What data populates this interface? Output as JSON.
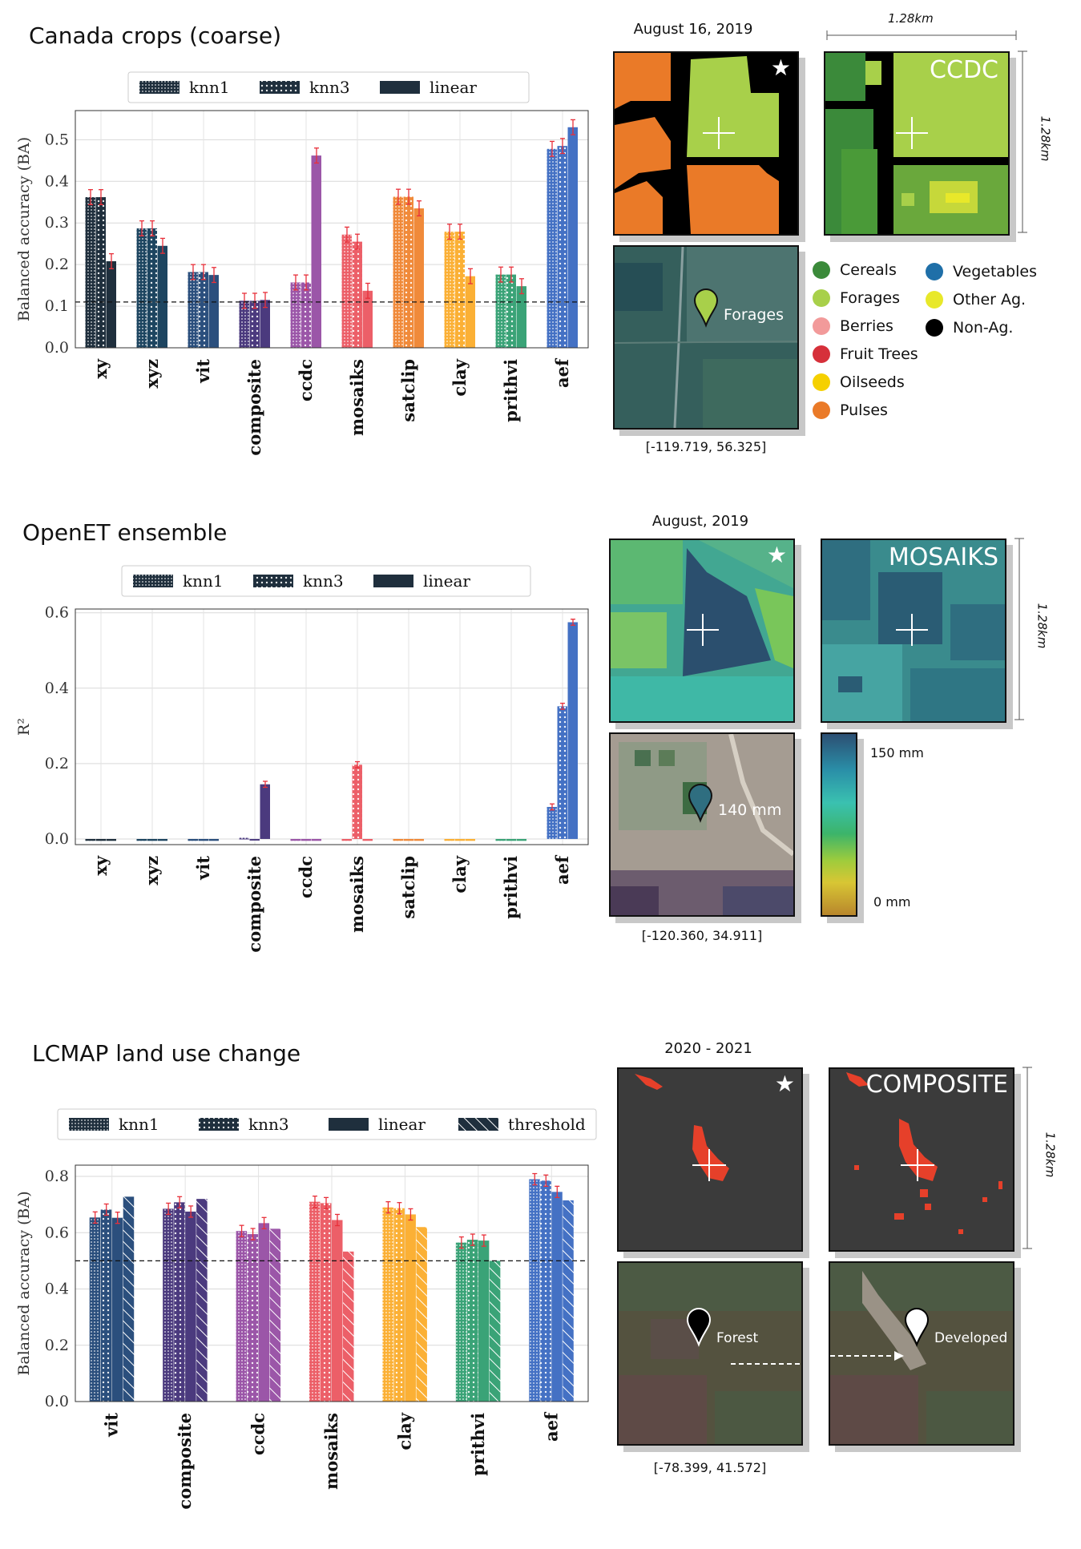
{
  "colors": {
    "xy": "#1f2f3d",
    "xyz": "#1d4560",
    "vit": "#2b4f7d",
    "composite": "#4b3a7e",
    "ccdc": "#9b56a8",
    "mosaiks": "#ec5f68",
    "satclip": "#f08a3a",
    "clay": "#fbb035",
    "prithvi": "#3aa377",
    "aef": "#4471c4",
    "error": "#e8303a"
  },
  "legend": {
    "knn1": "knn1",
    "knn3": "knn3",
    "linear": "linear",
    "threshold": "threshold"
  },
  "section1": {
    "title": "Canada crops (coarse)",
    "date": "August 16, 2019",
    "scale_top": "1.28km",
    "scale_side": "1.28km",
    "map_overlay": "CCDC",
    "pin_label": "Forages",
    "coords": "[-119.719, 56.325]",
    "classes": [
      {
        "name": "Cereals",
        "color": "#3b8a3a"
      },
      {
        "name": "Forages",
        "color": "#a8d04a"
      },
      {
        "name": "Berries",
        "color": "#f29a9a"
      },
      {
        "name": "Fruit Trees",
        "color": "#d6303a"
      },
      {
        "name": "Oilseeds",
        "color": "#f5d000"
      },
      {
        "name": "Pulses",
        "color": "#ea7a28"
      },
      {
        "name": "Vegetables",
        "color": "#1f6fa8"
      },
      {
        "name": "Other Ag.",
        "color": "#e8e82a"
      },
      {
        "name": "Non-Ag.",
        "color": "#000000"
      }
    ]
  },
  "section2": {
    "title": "OpenET ensemble",
    "date": "August, 2019",
    "scale_side": "1.28km",
    "map_overlay": "MOSAIKS",
    "pin_label": "140 mm",
    "coords": "[-120.360, 34.911]",
    "cbar_high": "150 mm",
    "cbar_low": "0 mm"
  },
  "section3": {
    "title": "LCMAP land use change",
    "date": "2020 - 2021",
    "scale_side": "1.28km",
    "map_overlay": "COMPOSITE",
    "pin_label_left": "Forest",
    "pin_label_right": "Developed",
    "coords": "[-78.399, 41.572]"
  },
  "chart_data": [
    {
      "type": "bar",
      "title": "Canada crops (coarse)",
      "ylabel": "Balanced accuracy (BA)",
      "ylim": [
        0,
        0.57
      ],
      "yticks": [
        "0.0",
        "0.1",
        "0.2",
        "0.3",
        "0.4",
        "0.5"
      ],
      "baseline": 0.11,
      "categories": [
        "xy",
        "xyz",
        "vit",
        "composite",
        "ccdc",
        "mosaiks",
        "satclip",
        "clay",
        "prithvi",
        "aef"
      ],
      "series": [
        {
          "name": "knn1",
          "values": [
            0.362,
            0.287,
            0.182,
            0.113,
            0.157,
            0.272,
            0.363,
            0.279,
            0.176,
            0.478
          ]
        },
        {
          "name": "knn3",
          "values": [
            0.362,
            0.287,
            0.182,
            0.113,
            0.157,
            0.255,
            0.363,
            0.279,
            0.176,
            0.485
          ]
        },
        {
          "name": "linear",
          "values": [
            0.208,
            0.245,
            0.175,
            0.115,
            0.462,
            0.137,
            0.335,
            0.172,
            0.148,
            0.53
          ]
        }
      ]
    },
    {
      "type": "bar",
      "title": "OpenET ensemble",
      "ylabel": "R²",
      "ylim": [
        -0.015,
        0.61
      ],
      "yticks": [
        "0.0",
        "0.2",
        "0.4",
        "0.6"
      ],
      "categories": [
        "xy",
        "xyz",
        "vit",
        "composite",
        "ccdc",
        "mosaiks",
        "satclip",
        "clay",
        "prithvi",
        "aef"
      ],
      "series": [
        {
          "name": "knn1",
          "values": [
            -0.005,
            -0.005,
            -0.005,
            0.003,
            -0.005,
            -0.005,
            -0.005,
            -0.005,
            -0.005,
            0.085
          ]
        },
        {
          "name": "knn3",
          "values": [
            -0.005,
            -0.005,
            -0.005,
            -0.004,
            -0.005,
            0.197,
            -0.005,
            -0.005,
            -0.005,
            0.352
          ]
        },
        {
          "name": "linear",
          "values": [
            -0.005,
            -0.005,
            -0.005,
            0.145,
            -0.005,
            -0.005,
            -0.005,
            -0.005,
            -0.005,
            0.575
          ]
        }
      ]
    },
    {
      "type": "bar",
      "title": "LCMAP land use change",
      "ylabel": "Balanced accuracy (BA)",
      "ylim": [
        0,
        0.84
      ],
      "yticks": [
        "0.0",
        "0.2",
        "0.4",
        "0.6",
        "0.8"
      ],
      "baseline": 0.5,
      "categories": [
        "vit",
        "composite",
        "ccdc",
        "mosaiks",
        "clay",
        "prithvi",
        "aef"
      ],
      "series": [
        {
          "name": "knn1",
          "values": [
            0.654,
            0.685,
            0.606,
            0.71,
            0.69,
            0.565,
            0.79
          ]
        },
        {
          "name": "knn3",
          "values": [
            0.682,
            0.708,
            0.595,
            0.705,
            0.687,
            0.575,
            0.785
          ]
        },
        {
          "name": "linear",
          "values": [
            0.653,
            0.675,
            0.634,
            0.645,
            0.665,
            0.572,
            0.745
          ]
        },
        {
          "name": "threshold",
          "values": [
            0.728,
            0.72,
            0.614,
            0.533,
            0.62,
            0.5,
            0.715
          ]
        }
      ]
    }
  ]
}
